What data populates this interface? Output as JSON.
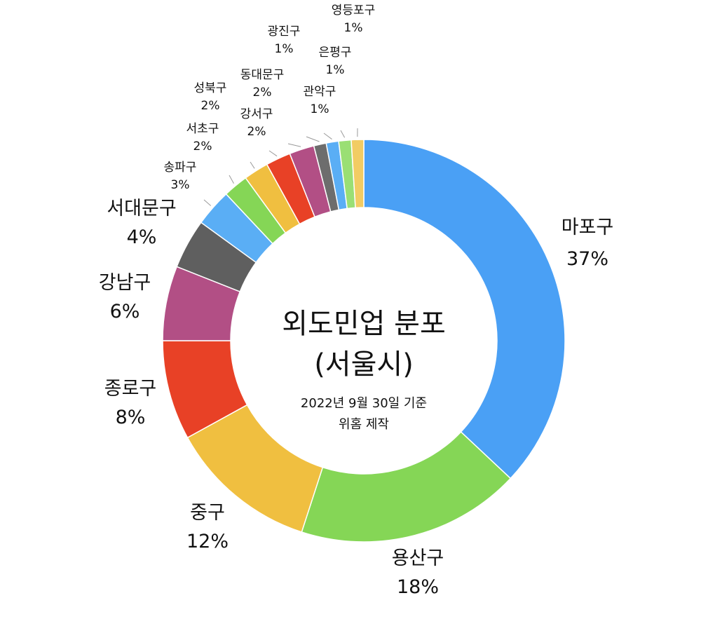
{
  "chart_data": {
    "type": "pie",
    "style": "donut",
    "title": [
      "외도민업 분포",
      "(서울시)"
    ],
    "subtitle": [
      "2022년 9월 30일 기준",
      "위홈 제작"
    ],
    "slices": [
      {
        "label": "마포구",
        "value": 37,
        "value_label": "37%",
        "color": "#4aa0f5"
      },
      {
        "label": "용산구",
        "value": 18,
        "value_label": "18%",
        "color": "#85d656"
      },
      {
        "label": "중구",
        "value": 12,
        "value_label": "12%",
        "color": "#f0bf40"
      },
      {
        "label": "종로구",
        "value": 8,
        "value_label": "8%",
        "color": "#e84126"
      },
      {
        "label": "강남구",
        "value": 6,
        "value_label": "6%",
        "color": "#b24f85"
      },
      {
        "label": "서대문구",
        "value": 4,
        "value_label": "4%",
        "color": "#5f5f5f"
      },
      {
        "label": "송파구",
        "value": 3,
        "value_label": "3%",
        "color": "#5aaef5"
      },
      {
        "label": "서초구",
        "value": 2,
        "value_label": "2%",
        "color": "#85d656"
      },
      {
        "label": "성북구",
        "value": 2,
        "value_label": "2%",
        "color": "#f0bf40"
      },
      {
        "label": "강서구",
        "value": 2,
        "value_label": "2%",
        "color": "#e84126"
      },
      {
        "label": "동대문구",
        "value": 2,
        "value_label": "2%",
        "color": "#b24f85"
      },
      {
        "label": "광진구",
        "value": 1,
        "value_label": "1%",
        "color": "#6d6d6d"
      },
      {
        "label": "관악구",
        "value": 1,
        "value_label": "1%",
        "color": "#5aaef5"
      },
      {
        "label": "은평구",
        "value": 1,
        "value_label": "1%",
        "color": "#9adf74"
      },
      {
        "label": "영등포구",
        "value": 1,
        "value_label": "1%",
        "color": "#f2cc63"
      }
    ]
  }
}
